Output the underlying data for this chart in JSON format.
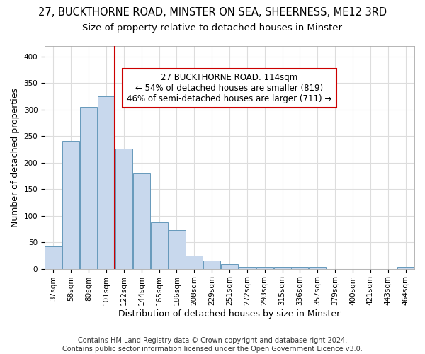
{
  "title": "27, BUCKTHORNE ROAD, MINSTER ON SEA, SHEERNESS, ME12 3RD",
  "subtitle": "Size of property relative to detached houses in Minster",
  "xlabel": "Distribution of detached houses by size in Minster",
  "ylabel": "Number of detached properties",
  "bar_labels": [
    "37sqm",
    "58sqm",
    "80sqm",
    "101sqm",
    "122sqm",
    "144sqm",
    "165sqm",
    "186sqm",
    "208sqm",
    "229sqm",
    "251sqm",
    "272sqm",
    "293sqm",
    "315sqm",
    "336sqm",
    "357sqm",
    "379sqm",
    "400sqm",
    "421sqm",
    "443sqm",
    "464sqm"
  ],
  "bar_values": [
    42,
    241,
    305,
    325,
    226,
    180,
    88,
    73,
    25,
    16,
    9,
    4,
    4,
    4,
    4,
    3,
    0,
    0,
    0,
    0,
    3
  ],
  "bar_color": "#c8d8ed",
  "bar_edge_color": "#6699bb",
  "red_line_index": 4.0,
  "annotation_line1": "27 BUCKTHORNE ROAD: 114sqm",
  "annotation_line2": "← 54% of detached houses are smaller (819)",
  "annotation_line3": "46% of semi-detached houses are larger (711) →",
  "annotation_box_color": "#ffffff",
  "annotation_box_edge_color": "#cc0000",
  "red_line_color": "#cc0000",
  "ylim": [
    0,
    420
  ],
  "yticks": [
    0,
    50,
    100,
    150,
    200,
    250,
    300,
    350,
    400
  ],
  "footer": "Contains HM Land Registry data © Crown copyright and database right 2024.\nContains public sector information licensed under the Open Government Licence v3.0.",
  "bg_color": "#ffffff",
  "plot_bg_color": "#ffffff",
  "grid_color": "#dddddd",
  "title_fontsize": 10.5,
  "subtitle_fontsize": 9.5,
  "axis_label_fontsize": 9,
  "tick_fontsize": 7.5,
  "footer_fontsize": 7.0,
  "annotation_fontsize": 8.5
}
